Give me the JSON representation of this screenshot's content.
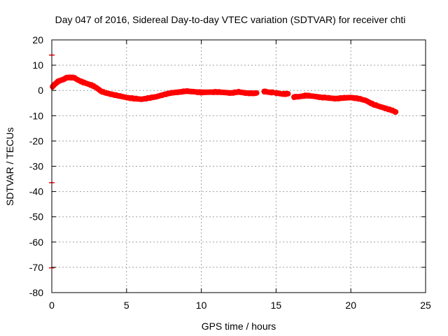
{
  "chart_data": {
    "type": "scatter",
    "title": "Day 047 of 2016, Sidereal Day-to-day VTEC variation (SDTVAR) for receiver chti",
    "xlabel": "GPS time / hours",
    "ylabel": "SDTVAR / TECUs",
    "xlim": [
      0,
      25
    ],
    "ylim": [
      -80,
      20
    ],
    "x_ticks": [
      0,
      5,
      10,
      15,
      20,
      25
    ],
    "y_ticks": [
      -80,
      -70,
      -60,
      -50,
      -40,
      -30,
      -20,
      -10,
      0,
      10,
      20
    ],
    "grid": true,
    "series": [
      {
        "name": "SDTVAR",
        "color": "#ff0000",
        "band_halfwidth": 1.1,
        "segments": [
          {
            "x": [
              0.05,
              0.2,
              0.4,
              0.6,
              0.8,
              1.0,
              1.2,
              1.5,
              1.8,
              2.1,
              2.4,
              2.7,
              3.0,
              3.3,
              3.6,
              4.0,
              4.5,
              5.0,
              5.5,
              6.0,
              6.5,
              7.0,
              7.5,
              8.0,
              8.5,
              9.0,
              9.5,
              10.0,
              10.5,
              11.0,
              11.5,
              12.0,
              12.5,
              13.0,
              13.5,
              13.7
            ],
            "y": [
              1.5,
              2.5,
              3.5,
              4.0,
              4.5,
              5.0,
              5.2,
              5.0,
              4.0,
              3.2,
              2.6,
              2.0,
              1.0,
              -0.3,
              -1.0,
              -1.5,
              -2.2,
              -2.8,
              -3.2,
              -3.5,
              -3.0,
              -2.5,
              -1.6,
              -1.0,
              -0.6,
              -0.3,
              -0.5,
              -0.8,
              -0.7,
              -0.6,
              -0.8,
              -1.0,
              -0.6,
              -1.0,
              -1.2,
              -1.0
            ]
          },
          {
            "x": [
              14.2,
              14.5,
              14.8
            ],
            "y": [
              -0.4,
              -0.7,
              -0.8
            ]
          },
          {
            "x": [
              15.0,
              15.3,
              15.6,
              15.8
            ],
            "y": [
              -1.0,
              -1.3,
              -1.4,
              -1.3
            ]
          },
          {
            "x": [
              16.2,
              16.6,
              17.0,
              17.5,
              18.0,
              18.5,
              19.0,
              19.5,
              20.0,
              20.5,
              21.0,
              21.5,
              22.0,
              22.4,
              22.8,
              23.0
            ],
            "y": [
              -2.6,
              -2.4,
              -2.0,
              -2.3,
              -2.7,
              -3.0,
              -3.2,
              -3.0,
              -2.8,
              -3.2,
              -4.0,
              -5.5,
              -6.5,
              -7.2,
              -8.0,
              -8.5
            ]
          }
        ]
      }
    ],
    "edge_marks": [
      {
        "x": 0,
        "y": 14
      },
      {
        "x": 0,
        "y": -36.5
      },
      {
        "x": 0,
        "y": -70.2
      }
    ]
  }
}
